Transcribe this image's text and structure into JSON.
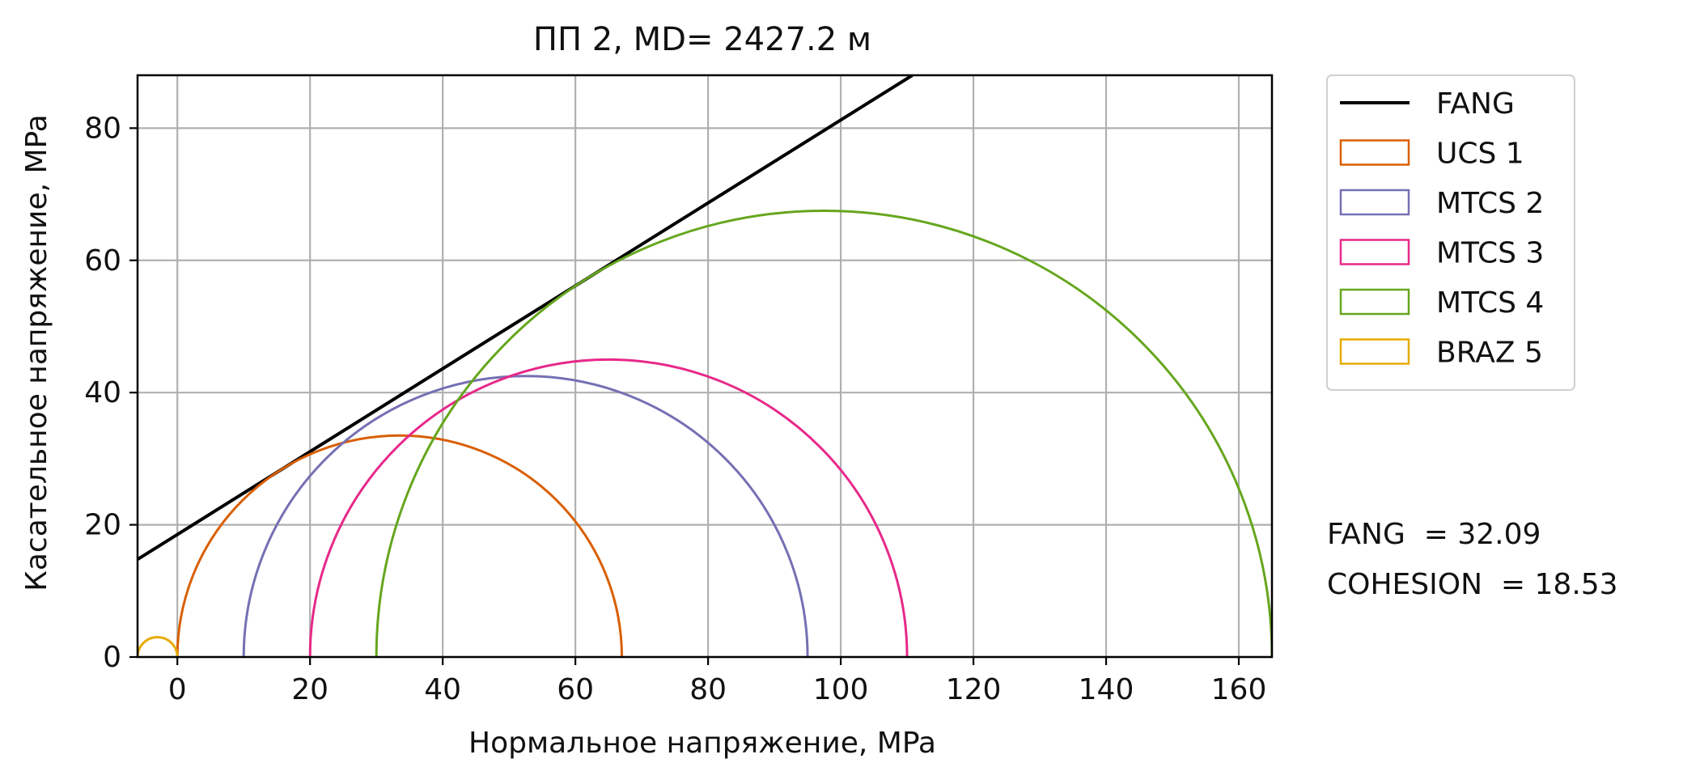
{
  "chart_data": {
    "type": "line",
    "title": "ПП 2, MD= 2427.2 м",
    "xlabel": "Нормальное напряжение, MPa",
    "ylabel": "Касательное напряжение, MPa",
    "xlim": [
      -6,
      165
    ],
    "ylim": [
      0,
      88
    ],
    "xticks": [
      0,
      20,
      40,
      60,
      80,
      100,
      120,
      140,
      160
    ],
    "yticks": [
      0,
      20,
      40,
      60,
      80
    ],
    "grid": true,
    "legend_position": "outside-right-top",
    "fang_line": {
      "name": "FANG",
      "color": "#000000",
      "friction_angle_deg": 32.09,
      "cohesion": 18.53,
      "points": [
        [
          -6,
          14.77
        ],
        [
          110.8,
          88
        ]
      ]
    },
    "circles": [
      {
        "name": "UCS 1",
        "color": "#d95f02",
        "sigma3": 0,
        "sigma1": 67
      },
      {
        "name": "MTCS 2",
        "color": "#7570b3",
        "sigma3": 10,
        "sigma1": 95
      },
      {
        "name": "MTCS 3",
        "color": "#e7298a",
        "sigma3": 20,
        "sigma1": 110
      },
      {
        "name": "MTCS 4",
        "color": "#66a61e",
        "sigma3": 30,
        "sigma1": 165
      },
      {
        "name": "BRAZ 5",
        "color": "#e6ab02",
        "sigma3": -6,
        "sigma1": 0
      }
    ],
    "annotations": [
      "FANG  = 32.09",
      "COHESION  = 18.53"
    ]
  }
}
